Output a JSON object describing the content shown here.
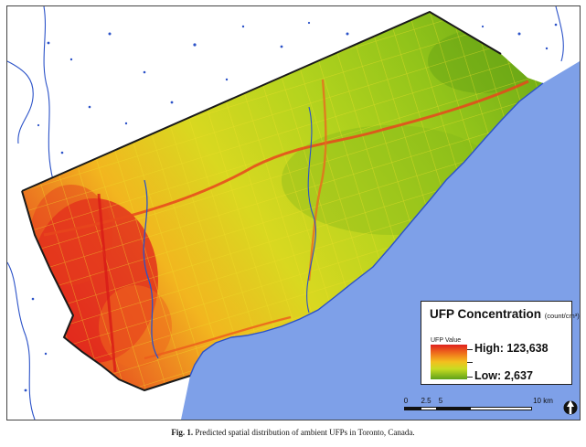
{
  "legend": {
    "title": "UFP Concentration",
    "unit": "(count/cm³)",
    "value_label": "UFP Value",
    "high": "High: 123,638",
    "low": "Low: 2,637",
    "ramp_colors": [
      "#e0201d",
      "#f07a1c",
      "#f3c01e",
      "#c8dc22",
      "#5ea11a"
    ]
  },
  "scale_bar": {
    "ticks": [
      "0",
      "2.5",
      "5",
      "10 km"
    ]
  },
  "caption": {
    "label": "Fig. 1.",
    "text": "Predicted spatial distribution of ambient UFPs in Toronto, Canada."
  },
  "colors": {
    "water": "#7ea0e8",
    "high": "#e0201d",
    "mid": "#f3c01e",
    "low": "#7cb81c",
    "boundary": "#1a1a1a"
  },
  "icons": {
    "north_arrow": "north-arrow-icon"
  }
}
